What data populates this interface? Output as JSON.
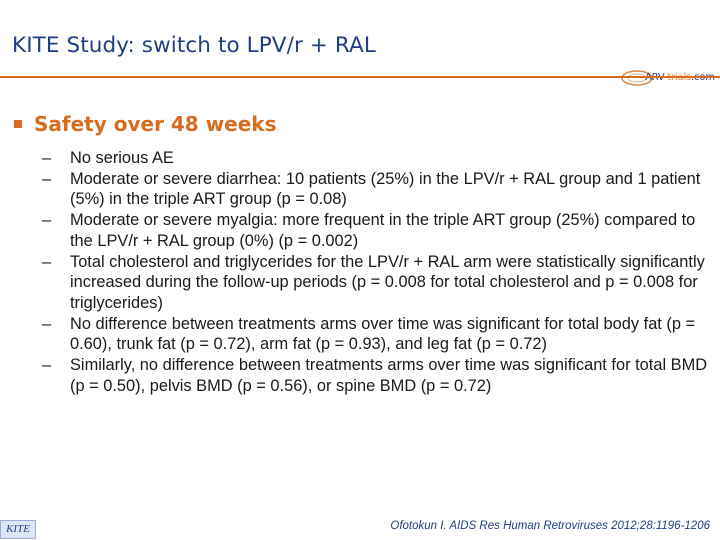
{
  "slide": {
    "title": "KITE Study: switch to LPV/r + RAL",
    "logo": {
      "prefix": "ARV-",
      "highlight": "trials",
      "suffix": ".com",
      "icon": "arv-trials-logo-icon"
    },
    "heading": "Safety over 48 weeks",
    "bullets": [
      {
        "text": "No serious AE"
      },
      {
        "text": "Moderate or severe diarrhea: 10 patients (25%) in the LPV/r + RAL group and 1 patient (5%) in the triple ART group (p = 0.08)"
      },
      {
        "text": "Moderate or severe myalgia: more frequent in the triple ART group (25%) compared to the LPV/r + RAL group (0%) (p = 0.002)"
      },
      {
        "text": "Total cholesterol and triglycerides for the LPV/r + RAL arm were statistically significantly increased during the follow-up periods (p = 0.008 for total cholesterol and p = 0.008 for triglycerides)"
      },
      {
        "text": "No difference between treatments arms over time was significant for total body fat (p = 0.60), trunk fat (p = 0.72), arm fat (p = 0.93), and leg fat (p = 0.72)"
      },
      {
        "text": "Similarly, no difference between treatments arms over time was significant for total BMD (p = 0.50), pelvis BMD (p = 0.56), or spine BMD (p = 0.72)"
      }
    ],
    "dash": "–",
    "footer_badge": "KITE",
    "citation": "Ofotokun I. AIDS Res Human Retroviruses 2012;28:1196-1206"
  },
  "colors": {
    "title": "#1f3f82",
    "accent": "#d96b1f",
    "body_text": "#1a1a1a"
  }
}
